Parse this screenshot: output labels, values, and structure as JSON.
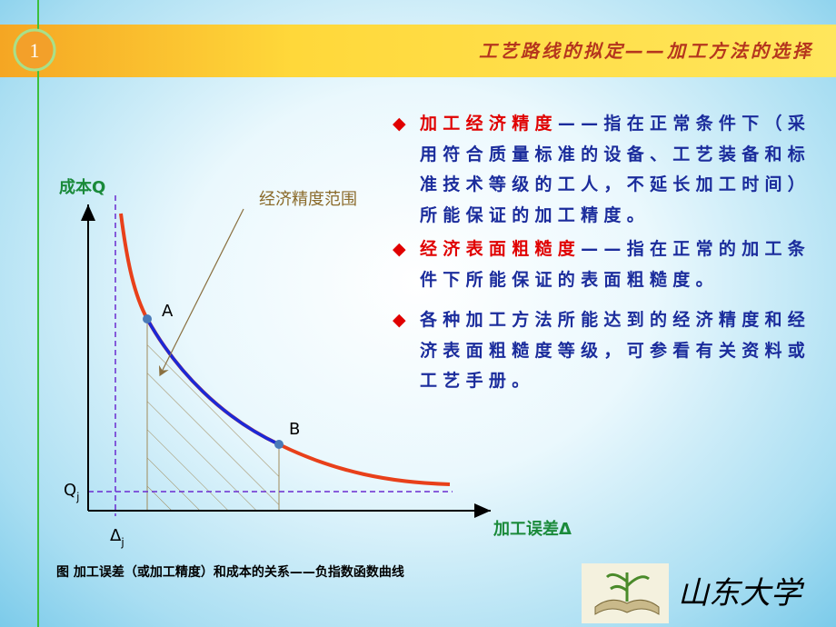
{
  "header": {
    "number": "1",
    "title": "工艺路线的拟定——加工方法的选择"
  },
  "diagram": {
    "y_axis_label": "成本Q",
    "x_axis_label": "加工误差Δ",
    "annotation": "经济精度范围",
    "points": [
      "A",
      "B"
    ],
    "q_label": {
      "base": "Q",
      "sub": "j"
    },
    "delta_label": {
      "base": "Δ",
      "sub": "j"
    },
    "caption": "图   加工误差（或加工精度）和成本的关系——负指数函数曲线"
  },
  "bullets": [
    {
      "term": "加工经济精度",
      "text": "——指在正常条件下（采用符合质量标准的设备、工艺装备和标准技术等级的工人，不延长加工时间）所能保证的加工精度。"
    },
    {
      "term": "经济表面粗糙度",
      "text": "——指在正常的加工条件下所能保证的表面粗糙度。"
    },
    {
      "term": "",
      "text": "各种加工方法所能达到的经济精度和经济表面粗糙度等级，可参看有关资料或工艺手册。"
    }
  ],
  "logo": {
    "text": "山东大学"
  }
}
